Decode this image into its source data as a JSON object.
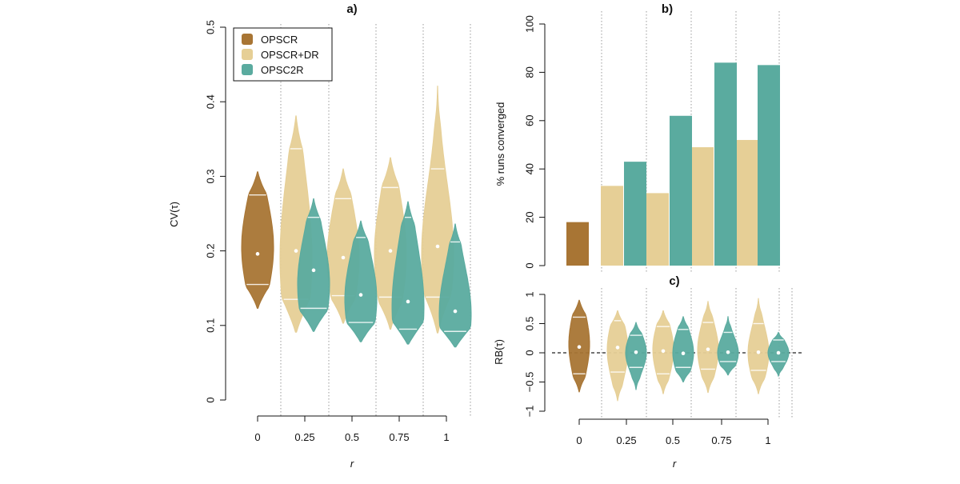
{
  "colors": {
    "OPSCR": "#a87534",
    "OPSCR+DR": "#e6cf96",
    "OPSC2R": "#5aab9f"
  },
  "chart_data": [
    {
      "panel": "a)",
      "type": "violin",
      "title": "a)",
      "xlabel": "r",
      "ylabel": "CV(τ)",
      "ylim": [
        0,
        0.5
      ],
      "yticks": [
        "0",
        "0.1",
        "0.2",
        "0.3",
        "0.4",
        "0.5"
      ],
      "categories": [
        "0",
        "0.25",
        "0.5",
        "0.75",
        "1"
      ],
      "legend": {
        "position": "top-left",
        "entries": [
          "OPSCR",
          "OPSCR+DR",
          "OPSC2R"
        ]
      },
      "series": [
        {
          "name": "OPSCR",
          "violins": [
            {
              "r": "0",
              "min": 0.123,
              "max": 0.306,
              "q1": 0.155,
              "median": 0.196,
              "q3": 0.275,
              "mode": 0.205
            }
          ]
        },
        {
          "name": "OPSCR+DR",
          "violins": [
            {
              "r": "0.25",
              "min": 0.091,
              "max": 0.381,
              "q1": 0.135,
              "median": 0.2,
              "q3": 0.337,
              "mode": 0.19
            },
            {
              "r": "0.5",
              "min": 0.103,
              "max": 0.31,
              "q1": 0.14,
              "median": 0.191,
              "q3": 0.27,
              "mode": 0.19
            },
            {
              "r": "0.75",
              "min": 0.095,
              "max": 0.325,
              "q1": 0.138,
              "median": 0.2,
              "q3": 0.285,
              "mode": 0.195
            },
            {
              "r": "1",
              "min": 0.09,
              "max": 0.421,
              "q1": 0.138,
              "median": 0.206,
              "q3": 0.31,
              "mode": 0.195
            }
          ]
        },
        {
          "name": "OPSC2R",
          "violins": [
            {
              "r": "0.25",
              "min": 0.092,
              "max": 0.27,
              "q1": 0.123,
              "median": 0.174,
              "q3": 0.245,
              "mode": 0.155
            },
            {
              "r": "0.5",
              "min": 0.078,
              "max": 0.24,
              "q1": 0.104,
              "median": 0.141,
              "q3": 0.218,
              "mode": 0.135
            },
            {
              "r": "0.75",
              "min": 0.075,
              "max": 0.266,
              "q1": 0.095,
              "median": 0.132,
              "q3": 0.245,
              "mode": 0.125
            },
            {
              "r": "1",
              "min": 0.071,
              "max": 0.236,
              "q1": 0.092,
              "median": 0.119,
              "q3": 0.212,
              "mode": 0.115
            }
          ]
        }
      ]
    },
    {
      "panel": "b)",
      "type": "bar",
      "title": "b)",
      "ylabel": "% runs converged",
      "ylim": [
        0,
        100
      ],
      "yticks": [
        "0",
        "20",
        "40",
        "60",
        "80",
        "100"
      ],
      "categories": [
        "0",
        "0.25",
        "0.5",
        "0.75",
        "1"
      ],
      "series": [
        {
          "name": "OPSCR",
          "values": [
            18,
            null,
            null,
            null,
            null
          ]
        },
        {
          "name": "OPSCR+DR",
          "values": [
            null,
            33,
            30,
            49,
            52
          ]
        },
        {
          "name": "OPSC2R",
          "values": [
            null,
            43,
            62,
            84,
            83
          ]
        }
      ]
    },
    {
      "panel": "c)",
      "type": "violin",
      "title": "c)",
      "xlabel": "r",
      "ylabel": "RB(τ)",
      "ylim": [
        -1,
        1
      ],
      "yticks": [
        "−1",
        "−0.5",
        "0",
        "0.5",
        "1"
      ],
      "reference_line": 0,
      "categories": [
        "0",
        "0.25",
        "0.5",
        "0.75",
        "1"
      ],
      "series": [
        {
          "name": "OPSCR",
          "violins": [
            {
              "r": "0",
              "min": -0.67,
              "max": 0.9,
              "q1": -0.36,
              "median": 0.1,
              "q3": 0.61,
              "mode": 0.15
            }
          ]
        },
        {
          "name": "OPSCR+DR",
          "violins": [
            {
              "r": "0.25",
              "min": -0.82,
              "max": 0.72,
              "q1": -0.33,
              "median": 0.09,
              "q3": 0.55,
              "mode": 0.05
            },
            {
              "r": "0.5",
              "min": -0.7,
              "max": 0.72,
              "q1": -0.36,
              "median": 0.03,
              "q3": 0.45,
              "mode": 0.05
            },
            {
              "r": "0.75",
              "min": -0.68,
              "max": 0.88,
              "q1": -0.28,
              "median": 0.06,
              "q3": 0.52,
              "mode": 0.05
            },
            {
              "r": "1",
              "min": -0.7,
              "max": 0.93,
              "q1": -0.3,
              "median": 0.01,
              "q3": 0.5,
              "mode": 0.0
            }
          ]
        },
        {
          "name": "OPSC2R",
          "violins": [
            {
              "r": "0.25",
              "min": -0.63,
              "max": 0.52,
              "q1": -0.25,
              "median": 0.01,
              "q3": 0.3,
              "mode": 0.0
            },
            {
              "r": "0.5",
              "min": -0.5,
              "max": 0.62,
              "q1": -0.25,
              "median": -0.01,
              "q3": 0.4,
              "mode": 0.0
            },
            {
              "r": "0.75",
              "min": -0.38,
              "max": 0.62,
              "q1": -0.15,
              "median": 0.01,
              "q3": 0.35,
              "mode": 0.0
            },
            {
              "r": "1",
              "min": -0.4,
              "max": 0.35,
              "q1": -0.15,
              "median": 0.0,
              "q3": 0.22,
              "mode": 0.0
            }
          ]
        }
      ]
    }
  ]
}
